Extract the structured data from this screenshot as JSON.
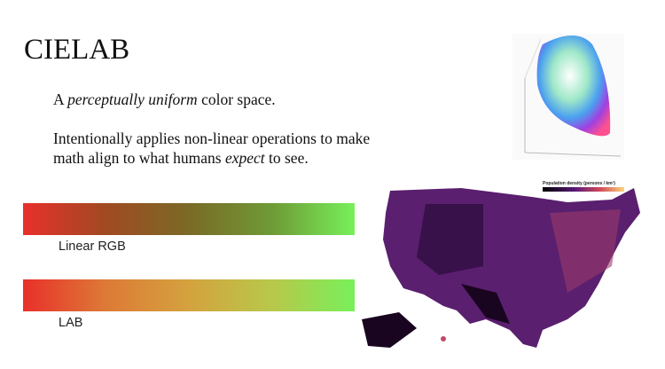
{
  "slide": {
    "title": "CIELAB",
    "paragraphs": [
      {
        "runs": [
          {
            "text": "A ",
            "italic": false
          },
          {
            "text": "perceptually uniform",
            "italic": true
          },
          {
            "text": " color space.",
            "italic": false
          }
        ]
      },
      {
        "runs": [
          {
            "text": "Intentionally applies non-linear operations to make",
            "italic": false
          }
        ]
      },
      {
        "runs": [
          {
            "text": "math align to what humans ",
            "italic": false
          },
          {
            "text": "expect",
            "italic": true
          },
          {
            "text": " to see.",
            "italic": false
          }
        ]
      }
    ],
    "gradients": [
      {
        "label": "Linear RGB",
        "stops": [
          "#e8302a",
          "#a04a22",
          "#7a6a26",
          "#6f9a36",
          "#77f05a"
        ]
      },
      {
        "label": "LAB",
        "stops": [
          "#e8302a",
          "#dd7a36",
          "#d4a23e",
          "#b8c84a",
          "#77f05a"
        ]
      }
    ],
    "map": {
      "legend_title": "Population density (persons / km²)"
    }
  }
}
